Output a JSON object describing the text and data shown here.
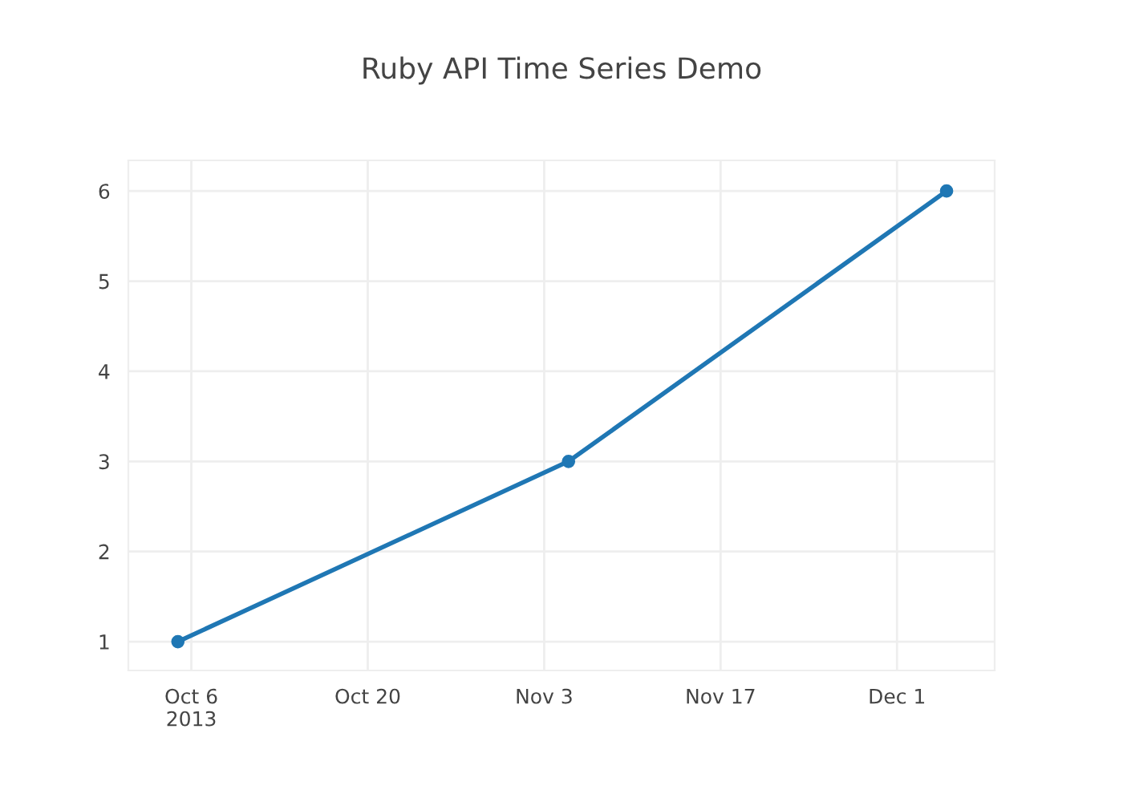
{
  "chart_data": {
    "type": "line",
    "title": "Ruby API Time Series Demo",
    "x": [
      "2013-10-04T22:23",
      "2013-11-04T22:23",
      "2013-12-04T22:23"
    ],
    "series": [
      {
        "color": "#1f77b4",
        "values": [
          1,
          3,
          6
        ]
      }
    ],
    "xlim": [
      "2013-10-01T00:00",
      "2013-12-08T18:00"
    ],
    "xticks": [
      {
        "value": "2013-10-06",
        "label": "Oct 6\n2013"
      },
      {
        "value": "2013-10-20",
        "label": "Oct 20"
      },
      {
        "value": "2013-11-03",
        "label": "Nov 3"
      },
      {
        "value": "2013-11-17",
        "label": "Nov 17"
      },
      {
        "value": "2013-12-01",
        "label": "Dec 1"
      }
    ],
    "ylim": [
      0.68,
      6.34
    ],
    "yticks": [
      1,
      2,
      3,
      4,
      5,
      6
    ],
    "grid": true,
    "marker": "circle",
    "line_style": "solid",
    "legend": false
  }
}
